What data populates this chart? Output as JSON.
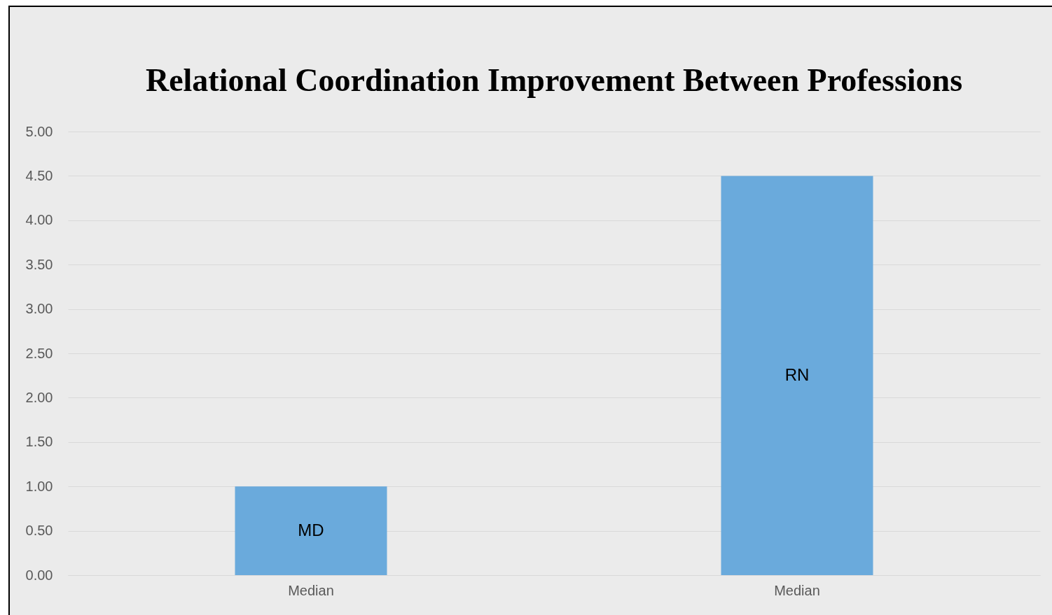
{
  "chart_data": {
    "type": "bar",
    "title": "Relational Coordination Improvement\nBetween Professions",
    "categories": [
      "Median",
      "Median"
    ],
    "values": [
      1.0,
      4.5
    ],
    "value_labels": [
      "MD",
      "RN"
    ],
    "color": "#6aaadc",
    "ylim": [
      0,
      5
    ],
    "yticks": [
      {
        "value": 0,
        "label": "0.00"
      },
      {
        "value": 0.5,
        "label": "0.50"
      },
      {
        "value": 1,
        "label": "1.00"
      },
      {
        "value": 1.5,
        "label": "1.50"
      },
      {
        "value": 2,
        "label": "2.00"
      },
      {
        "value": 2.5,
        "label": "2.50"
      },
      {
        "value": 3,
        "label": "3.00"
      },
      {
        "value": 3.5,
        "label": "3.50"
      },
      {
        "value": 4,
        "label": "4.00"
      },
      {
        "value": 4.5,
        "label": "4.50"
      },
      {
        "value": 5,
        "label": "5.00"
      }
    ],
    "grid": "y"
  }
}
